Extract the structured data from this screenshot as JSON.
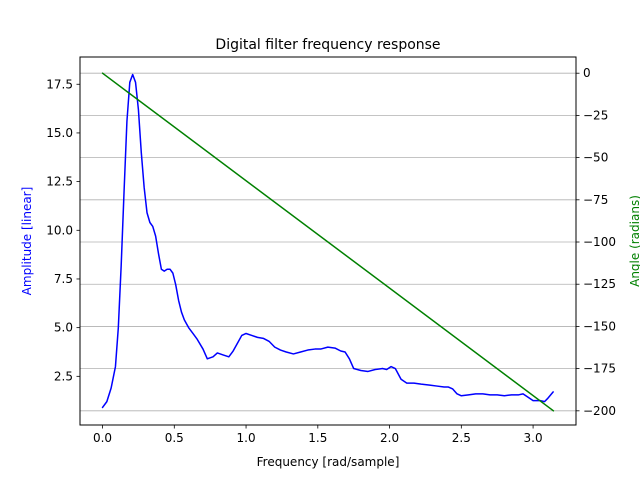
{
  "chart_data": {
    "type": "line",
    "title": "Digital filter frequency response",
    "xlabel": "Frequency [rad/sample]",
    "ylabel_left": "Amplitude [linear]",
    "ylabel_right": "Angle (radians)",
    "xlim": [
      -0.157,
      3.299
    ],
    "ylim_left": [
      0.0,
      18.9
    ],
    "ylim_right": [
      -208.4,
      9.6
    ],
    "x_ticks": [
      0.0,
      0.5,
      1.0,
      1.5,
      2.0,
      2.5,
      3.0
    ],
    "x_tick_labels": [
      "0.0",
      "0.5",
      "1.0",
      "1.5",
      "2.0",
      "2.5",
      "3.0"
    ],
    "y_left_ticks": [
      2.5,
      5.0,
      7.5,
      10.0,
      12.5,
      15.0,
      17.5
    ],
    "y_left_tick_labels": [
      "2.5",
      "5.0",
      "7.5",
      "10.0",
      "12.5",
      "15.0",
      "17.5"
    ],
    "y_right_ticks": [
      0,
      -25,
      -50,
      -75,
      -100,
      -125,
      -150,
      -175,
      -200
    ],
    "y_right_tick_labels": [
      "0",
      "−25",
      "−50",
      "−75",
      "−100",
      "−125",
      "−150",
      "−175",
      "−200"
    ],
    "grid": "right-axis horizontal",
    "colors": {
      "amplitude": "#0000ff",
      "angle": "#008000",
      "grid": "#b0b0b0",
      "axis": "#000000"
    },
    "series": [
      {
        "axis": "left",
        "color": "#0000ff",
        "x": [
          0.0,
          0.03,
          0.06,
          0.09,
          0.11,
          0.13,
          0.15,
          0.17,
          0.19,
          0.21,
          0.23,
          0.25,
          0.27,
          0.29,
          0.31,
          0.33,
          0.35,
          0.37,
          0.39,
          0.41,
          0.43,
          0.45,
          0.47,
          0.49,
          0.51,
          0.53,
          0.55,
          0.57,
          0.6,
          0.63,
          0.66,
          0.7,
          0.73,
          0.77,
          0.8,
          0.84,
          0.88,
          0.91,
          0.94,
          0.97,
          1.0,
          1.04,
          1.08,
          1.12,
          1.16,
          1.2,
          1.24,
          1.28,
          1.33,
          1.38,
          1.43,
          1.48,
          1.52,
          1.57,
          1.62,
          1.66,
          1.69,
          1.72,
          1.75,
          1.8,
          1.85,
          1.9,
          1.95,
          1.98,
          2.01,
          2.04,
          2.08,
          2.12,
          2.17,
          2.22,
          2.28,
          2.33,
          2.38,
          2.41,
          2.44,
          2.47,
          2.5,
          2.55,
          2.6,
          2.65,
          2.7,
          2.75,
          2.8,
          2.85,
          2.9,
          2.93,
          2.96,
          3.0,
          3.05,
          3.08,
          3.1,
          3.14
        ],
        "values": [
          0.9,
          1.2,
          1.9,
          3.0,
          5.0,
          8.2,
          12.0,
          15.6,
          17.6,
          18.0,
          17.6,
          16.2,
          14.0,
          12.2,
          10.9,
          10.4,
          10.2,
          9.7,
          8.8,
          8.0,
          7.9,
          8.0,
          8.0,
          7.8,
          7.2,
          6.4,
          5.8,
          5.4,
          5.0,
          4.7,
          4.4,
          3.9,
          3.4,
          3.5,
          3.7,
          3.6,
          3.5,
          3.8,
          4.2,
          4.6,
          4.7,
          4.6,
          4.5,
          4.45,
          4.3,
          4.0,
          3.85,
          3.75,
          3.65,
          3.75,
          3.85,
          3.9,
          3.9,
          4.0,
          3.95,
          3.8,
          3.75,
          3.4,
          2.9,
          2.8,
          2.75,
          2.85,
          2.9,
          2.85,
          3.0,
          2.9,
          2.35,
          2.15,
          2.15,
          2.1,
          2.05,
          2.0,
          1.95,
          1.95,
          1.85,
          1.6,
          1.5,
          1.55,
          1.6,
          1.6,
          1.55,
          1.55,
          1.5,
          1.55,
          1.55,
          1.6,
          1.45,
          1.25,
          1.25,
          1.2,
          1.35,
          1.7
        ]
      },
      {
        "axis": "right",
        "color": "#008000",
        "x": [
          0.0,
          3.1416
        ],
        "values": [
          0.0,
          -200.0
        ]
      }
    ]
  }
}
